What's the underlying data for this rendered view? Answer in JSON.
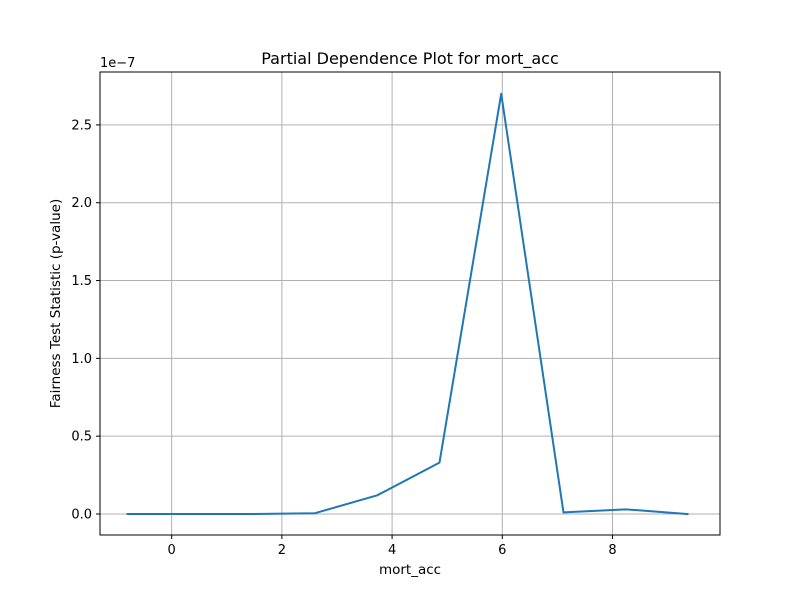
{
  "chart_data": {
    "type": "line",
    "title": "Partial Dependence Plot for mort_acc",
    "xlabel": "mort_acc",
    "ylabel": "Fairness Test Statistic (p-value)",
    "y_offset_label": "1e−7",
    "xlim": [
      -1.3,
      9.95
    ],
    "ylim": [
      -0.135,
      2.84
    ],
    "y_scale_exponent": -7,
    "x_ticks": [
      0,
      2,
      4,
      6,
      8
    ],
    "y_ticks": [
      0.0,
      0.5,
      1.0,
      1.5,
      2.0,
      2.5
    ],
    "x_tick_labels": [
      "0",
      "2",
      "4",
      "6",
      "8"
    ],
    "y_tick_labels": [
      "0.0",
      "0.5",
      "1.0",
      "1.5",
      "2.0",
      "2.5"
    ],
    "grid": true,
    "colors": {
      "line": "#1f77b4",
      "grid": "#b0b0b0",
      "axes": "#000000"
    },
    "series": [
      {
        "x": [
          -0.8,
          0.34,
          1.48,
          2.6,
          3.73,
          4.86,
          5.98,
          7.11,
          8.24,
          9.36
        ],
        "y": [
          0.0,
          0.0,
          0.0,
          0.005,
          0.12,
          0.33,
          2.7,
          0.01,
          0.03,
          0.0
        ]
      }
    ]
  }
}
